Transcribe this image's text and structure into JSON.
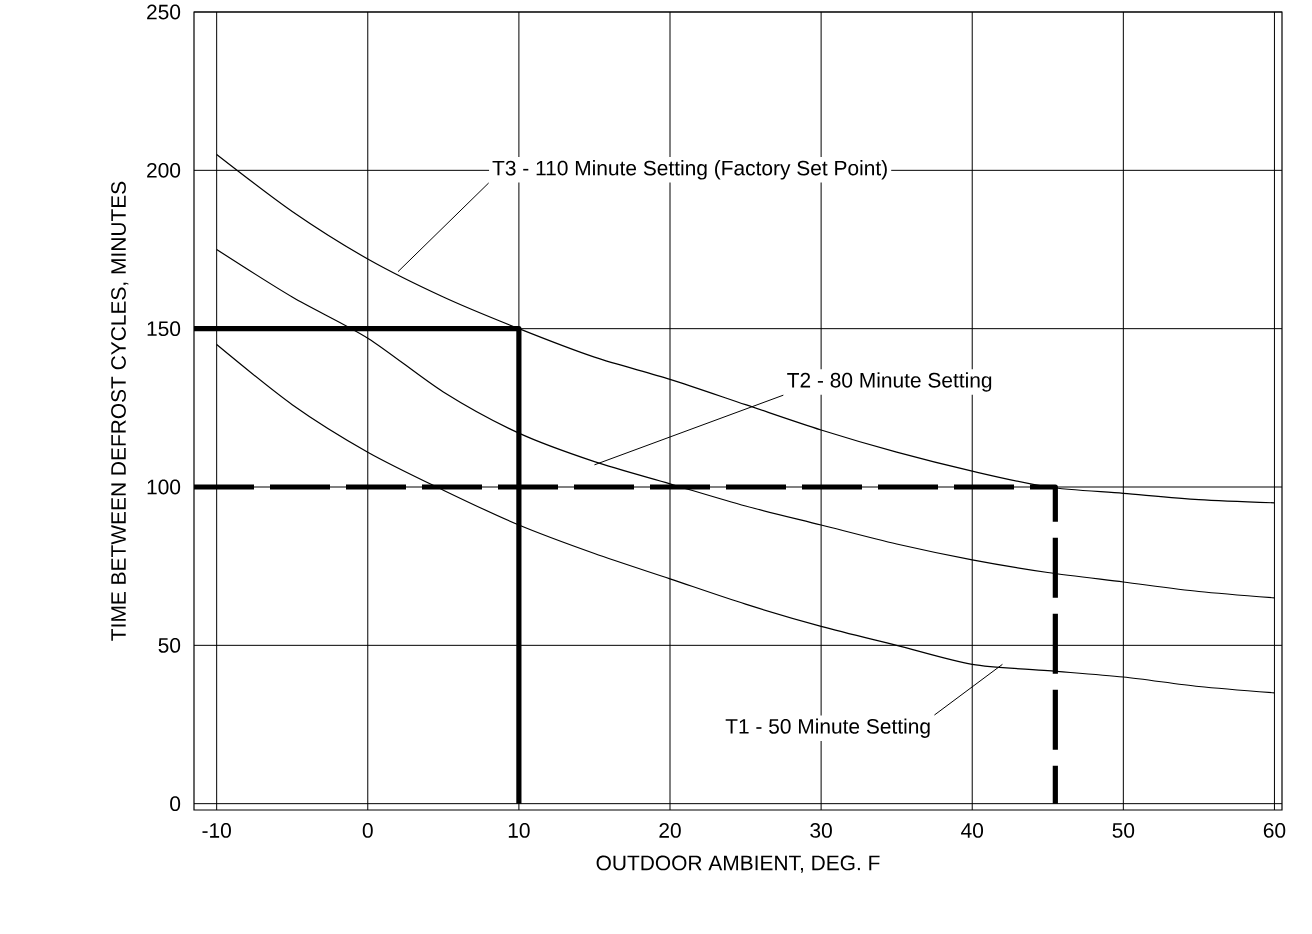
{
  "chart_data": {
    "type": "line",
    "xlabel": "OUTDOOR AMBIENT, DEG. F",
    "ylabel": "TIME BETWEEN DEFROST CYCLES, MINUTES",
    "xlim": [
      -11.5,
      60.5
    ],
    "ylim": [
      -2,
      250
    ],
    "xticks": [
      -10,
      0,
      10,
      20,
      30,
      40,
      50,
      60
    ],
    "yticks": [
      0,
      50,
      100,
      150,
      200,
      250
    ],
    "grid": true,
    "marker": "none",
    "line_style": "solid",
    "series": [
      {
        "color": "#000000",
        "x": [
          -10,
          -5,
          0,
          5,
          10,
          15,
          20,
          25,
          30,
          35,
          40,
          45,
          50,
          55,
          60
        ],
        "values": [
          205,
          187,
          172,
          160,
          150,
          141,
          134,
          126,
          118,
          111,
          105,
          100,
          98,
          96,
          95
        ]
      },
      {
        "color": "#000000",
        "x": [
          -10,
          -5,
          0,
          5,
          10,
          15,
          20,
          25,
          30,
          35,
          40,
          45,
          50,
          55,
          60
        ],
        "values": [
          175,
          160,
          147,
          130,
          117,
          108,
          101,
          94,
          88,
          82,
          77,
          73,
          70,
          67,
          65
        ]
      },
      {
        "color": "#000000",
        "x": [
          -10,
          -5,
          0,
          5,
          10,
          15,
          20,
          25,
          30,
          35,
          40,
          45,
          50,
          55,
          60
        ],
        "values": [
          145,
          126,
          111,
          99,
          88,
          79,
          71,
          63,
          56,
          50,
          44,
          42,
          40,
          37,
          35
        ]
      },
      {
        "color": "#000000",
        "line_style": "solid",
        "x": [
          -11.5,
          10,
          10
        ],
        "values": [
          150,
          150,
          0
        ]
      },
      {
        "color": "#000000",
        "line_style": "dashed",
        "x": [
          -11.5,
          45.5,
          45.5
        ],
        "values": [
          100,
          100,
          0
        ]
      }
    ],
    "annotations": [
      {
        "text": "T3 - 110 Minute Setting (Factory Set Point)",
        "x": 2,
        "y": 168
      },
      {
        "text": "T2 - 80 Minute Setting",
        "x": 15,
        "y": 107
      },
      {
        "text": "T1 - 50 Minute Setting",
        "x": 42,
        "y": 44
      }
    ]
  }
}
